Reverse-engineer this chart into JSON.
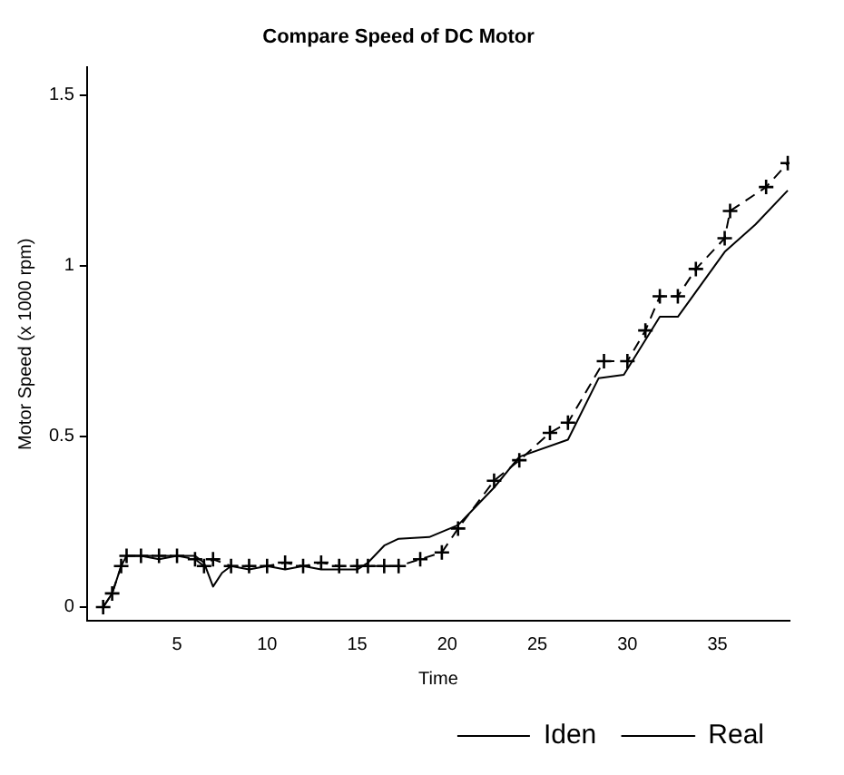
{
  "chart_data": {
    "type": "line",
    "title": "Compare Speed of DC Motor",
    "xlabel": "Time",
    "ylabel": "Motor Speed (x 1000 rpm)",
    "xlim": [
      0,
      39
    ],
    "xticks": [
      5,
      10,
      15,
      20,
      25,
      30,
      35
    ],
    "ylim": [
      -0.04,
      1.58
    ],
    "yticks": [
      0,
      0.5,
      1,
      1.5
    ],
    "grid": false,
    "legend": "bottom right",
    "series": [
      {
        "name": "Iden",
        "color": "#000000",
        "marker": "cross",
        "line_style": "dashed",
        "x": [
          0.9,
          1.4,
          1.9,
          2.2,
          3,
          4,
          5,
          6,
          6.5,
          7,
          8,
          9,
          10,
          11,
          12,
          13,
          14,
          15,
          15.6,
          16.5,
          17.3,
          18.5,
          19.7,
          20.6,
          22.6,
          24,
          25.7,
          26.7,
          28.7,
          30,
          31,
          31.8,
          32.8,
          33.8,
          35.4,
          35.7,
          37.7,
          38.9
        ],
        "values": [
          0,
          0.04,
          0.12,
          0.15,
          0.15,
          0.15,
          0.15,
          0.14,
          0.12,
          0.14,
          0.12,
          0.12,
          0.12,
          0.13,
          0.12,
          0.13,
          0.12,
          0.12,
          0.12,
          0.12,
          0.12,
          0.14,
          0.16,
          0.23,
          0.37,
          0.43,
          0.51,
          0.54,
          0.72,
          0.72,
          0.81,
          0.91,
          0.91,
          0.99,
          1.08,
          1.16,
          1.23,
          1.3
        ]
      },
      {
        "name": "Real",
        "color": "#000000",
        "marker": "none",
        "line_style": "solid",
        "x": [
          0.9,
          1.4,
          1.9,
          2.2,
          3,
          4,
          5,
          6,
          6.5,
          7,
          7.5,
          8,
          9,
          10,
          11,
          12,
          13,
          14,
          15,
          15.6,
          16.5,
          17.3,
          19,
          20.6,
          22.6,
          24,
          26.7,
          28.4,
          29.8,
          31.8,
          32.8,
          35.4,
          37.1,
          38.9
        ],
        "values": [
          0,
          0.04,
          0.12,
          0.15,
          0.15,
          0.14,
          0.15,
          0.15,
          0.13,
          0.06,
          0.1,
          0.12,
          0.11,
          0.12,
          0.11,
          0.12,
          0.11,
          0.11,
          0.11,
          0.13,
          0.18,
          0.2,
          0.205,
          0.24,
          0.35,
          0.44,
          0.49,
          0.67,
          0.68,
          0.85,
          0.85,
          1.04,
          1.12,
          1.22
        ]
      }
    ]
  }
}
